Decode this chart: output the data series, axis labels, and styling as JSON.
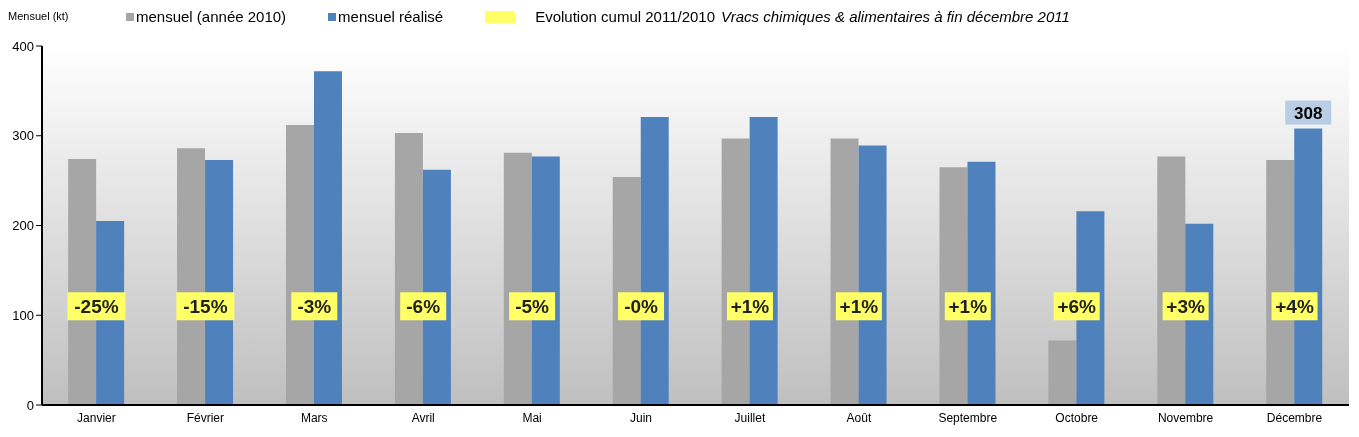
{
  "chart_data": {
    "type": "bar",
    "title": "Vracs chimiques & alimentaires à fin décembre 2011",
    "ylabel": "Mensuel (kt)",
    "categories": [
      "Janvier",
      "Février",
      "Mars",
      "Avril",
      "Mai",
      "Juin",
      "Juillet",
      "Août",
      "Septembre",
      "Octobre",
      "Novembre",
      "Décembre"
    ],
    "series": [
      {
        "name": "mensuel (année 2010)",
        "color": "#a6a6a6",
        "values": [
          274,
          286,
          312,
          303,
          281,
          254,
          297,
          297,
          265,
          72,
          277,
          273
        ]
      },
      {
        "name": "mensuel réalisé",
        "color": "#4f81bd",
        "values": [
          205,
          273,
          372,
          262,
          277,
          321,
          321,
          289,
          271,
          216,
          202,
          308
        ],
        "value_labels": [
          null,
          null,
          null,
          null,
          null,
          null,
          null,
          null,
          null,
          null,
          null,
          "308"
        ]
      }
    ],
    "annotations": [
      "Evolution cumul 2011/2010",
      {
        "text": "-25%",
        "x": "Janvier",
        "y": 110
      },
      {
        "text": "-15%",
        "x": "Février",
        "y": 110
      },
      {
        "text": "-3%",
        "x": "Mars",
        "y": 110
      },
      {
        "text": "-6%",
        "x": "Avril",
        "y": 110
      },
      {
        "text": "-5%",
        "x": "Mai",
        "y": 110
      },
      {
        "text": "-0%",
        "x": "Juin",
        "y": 110
      },
      {
        "text": "+1%",
        "x": "Juillet",
        "y": 110
      },
      {
        "text": "+1%",
        "x": "Août",
        "y": 110
      },
      {
        "text": "+1%",
        "x": "Septembre",
        "y": 110
      },
      {
        "text": "+6%",
        "x": "Octobre",
        "y": 110
      },
      {
        "text": "+3%",
        "x": "Novembre",
        "y": 110
      },
      {
        "text": "+4%",
        "x": "Décembre",
        "y": 110
      }
    ],
    "ylim": [
      0,
      400
    ],
    "yticks": [
      0,
      100,
      200,
      300,
      400
    ],
    "legend": "top"
  }
}
